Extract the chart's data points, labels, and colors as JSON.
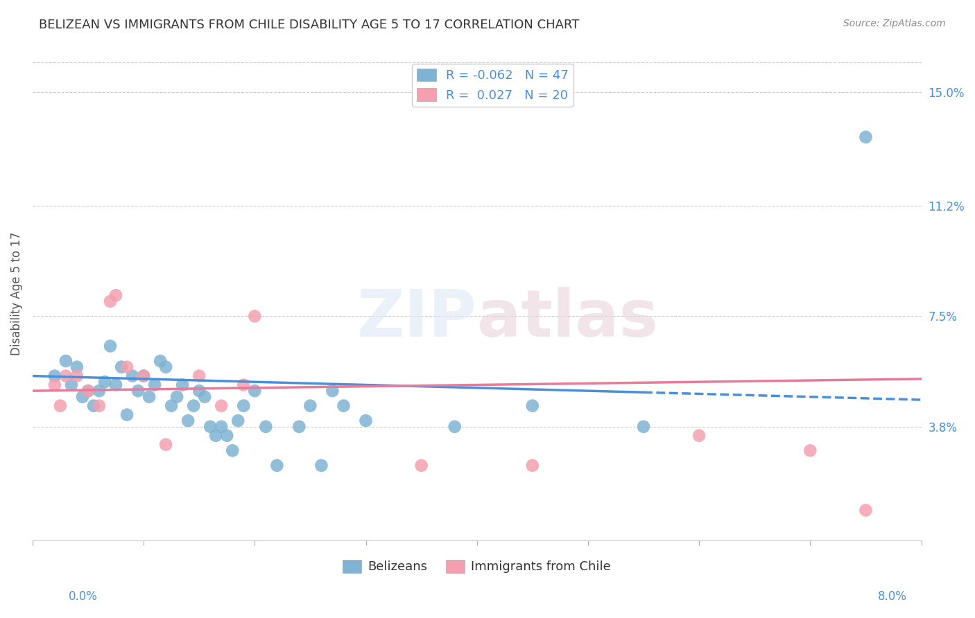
{
  "title": "BELIZEAN VS IMMIGRANTS FROM CHILE DISABILITY AGE 5 TO 17 CORRELATION CHART",
  "source": "Source: ZipAtlas.com",
  "ylabel": "Disability Age 5 to 17",
  "ytick_values": [
    3.8,
    7.5,
    11.2,
    15.0
  ],
  "xmin": 0.0,
  "xmax": 8.0,
  "ymin": 0.0,
  "ymax": 16.5,
  "legend_r_blue": "R = -0.062",
  "legend_n_blue": "N = 47",
  "legend_r_pink": "R =  0.027",
  "legend_n_pink": "N = 20",
  "legend_label_belizeans": "Belizeans",
  "legend_label_chile": "Immigrants from Chile",
  "belizean_color": "#7fb3d3",
  "chile_color": "#f4a0b0",
  "trend_blue_color": "#4a90d9",
  "trend_pink_color": "#e87a9a",
  "belizean_x": [
    0.2,
    0.3,
    0.35,
    0.4,
    0.45,
    0.5,
    0.55,
    0.6,
    0.65,
    0.7,
    0.75,
    0.8,
    0.85,
    0.9,
    0.95,
    1.0,
    1.05,
    1.1,
    1.15,
    1.2,
    1.25,
    1.3,
    1.35,
    1.4,
    1.45,
    1.5,
    1.55,
    1.6,
    1.65,
    1.7,
    1.75,
    1.8,
    1.85,
    1.9,
    2.0,
    2.1,
    2.2,
    2.4,
    2.5,
    2.6,
    2.7,
    2.8,
    3.0,
    3.8,
    4.5,
    5.5,
    7.5
  ],
  "belizean_y": [
    5.5,
    6.0,
    5.2,
    5.8,
    4.8,
    5.0,
    4.5,
    5.0,
    5.3,
    6.5,
    5.2,
    5.8,
    4.2,
    5.5,
    5.0,
    5.5,
    4.8,
    5.2,
    6.0,
    5.8,
    4.5,
    4.8,
    5.2,
    4.0,
    4.5,
    5.0,
    4.8,
    3.8,
    3.5,
    3.8,
    3.5,
    3.0,
    4.0,
    4.5,
    5.0,
    3.8,
    2.5,
    3.8,
    4.5,
    2.5,
    5.0,
    4.5,
    4.0,
    3.8,
    4.5,
    3.8,
    13.5
  ],
  "chile_x": [
    0.2,
    0.25,
    0.3,
    0.4,
    0.5,
    0.6,
    0.7,
    0.75,
    0.85,
    1.0,
    1.2,
    1.5,
    1.7,
    1.9,
    2.0,
    3.5,
    4.5,
    6.0,
    7.0,
    7.5
  ],
  "chile_y": [
    5.2,
    4.5,
    5.5,
    5.5,
    5.0,
    4.5,
    8.0,
    8.2,
    5.8,
    5.5,
    3.2,
    5.5,
    4.5,
    5.2,
    7.5,
    2.5,
    2.5,
    3.5,
    3.0,
    1.0
  ],
  "belizean_trend_y_start": 5.5,
  "belizean_trend_y_end": 4.7,
  "belizean_solid_end_x": 5.5,
  "chile_trend_y_start": 5.0,
  "chile_trend_y_end": 5.4
}
